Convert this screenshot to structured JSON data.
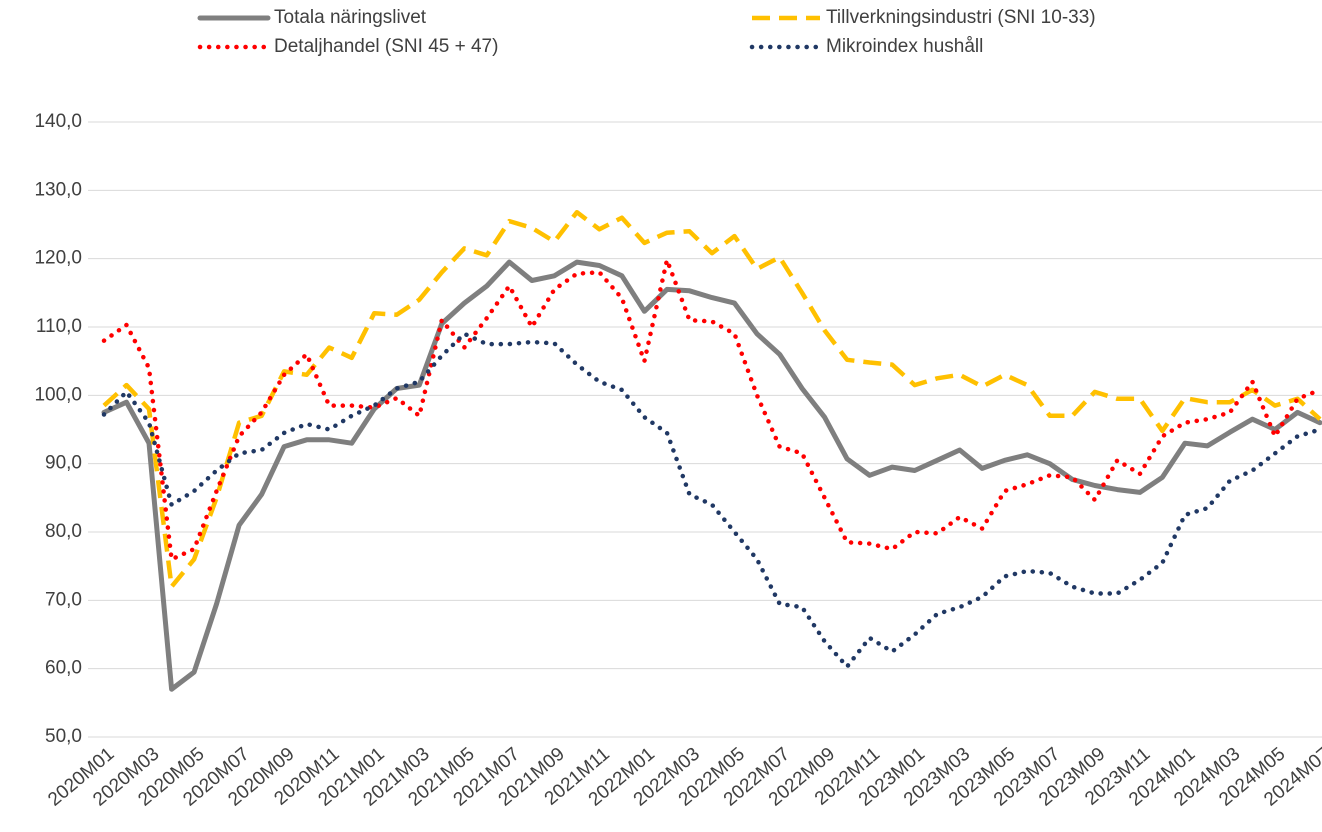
{
  "chart_data": {
    "type": "line",
    "categories": [
      "2020M01",
      null,
      "2020M03",
      null,
      "2020M05",
      null,
      "2020M07",
      null,
      "2020M09",
      null,
      "2020M11",
      null,
      "2021M01",
      null,
      "2021M03",
      null,
      "2021M05",
      null,
      "2021M07",
      null,
      "2021M09",
      null,
      "2021M11",
      null,
      "2022M01",
      null,
      "2022M03",
      null,
      "2022M05",
      null,
      "2022M07",
      null,
      "2022M09",
      null,
      "2022M11",
      null,
      "2023M01",
      null,
      "2023M03",
      null,
      "2023M05",
      null,
      "2023M07",
      null,
      "2023M09",
      null,
      "2023M11",
      null,
      "2024M01",
      null,
      "2024M03",
      null,
      "2024M05",
      null,
      "2024M07"
    ],
    "series": [
      {
        "name": "Totala näringslivet",
        "color": "#7f7f7f",
        "style": "solid",
        "values": [
          97.5,
          99,
          93,
          57,
          59.5,
          69.5,
          81,
          85.5,
          92.5,
          93.5,
          93.5,
          93,
          98,
          101,
          101.5,
          110.5,
          113.5,
          116,
          119.5,
          116.8,
          117.5,
          119.5,
          119,
          117.5,
          112.3,
          115.5,
          115.3,
          114.3,
          113.5,
          109,
          106,
          101,
          96.8,
          90.7,
          88.3,
          89.5,
          89,
          90.5,
          92,
          89.3,
          90.5,
          91.3,
          90,
          87.7,
          86.8,
          86.2,
          85.8,
          88,
          93,
          92.6,
          94.6,
          96.5,
          95,
          97.5,
          96
        ]
      },
      {
        "name": "Tillverkningsindustri (SNI 10-33)",
        "color": "#ffc000",
        "style": "dash",
        "values": [
          98.5,
          101.5,
          98,
          72,
          76,
          85,
          96,
          97,
          103.5,
          103,
          107,
          105.5,
          112,
          111.8,
          114,
          118,
          121.5,
          120.5,
          125.5,
          124.5,
          122.5,
          126.8,
          124.3,
          126,
          122.3,
          123.8,
          124,
          120.8,
          123.3,
          118.5,
          120.2,
          115,
          109.5,
          105.2,
          104.8,
          104.5,
          101.5,
          102.5,
          103,
          101.3,
          103,
          101.5,
          97,
          97,
          100.5,
          99.5,
          99.5,
          94.8,
          99.6,
          99,
          99,
          100.8,
          98.5,
          99.5,
          96.5
        ]
      },
      {
        "name": "Detaljhandel (SNI 45 + 47)",
        "color": "#ff0000",
        "style": "dot",
        "values": [
          108,
          110.3,
          104,
          76,
          77.5,
          86,
          94,
          97.5,
          103,
          106,
          98.5,
          98.5,
          98.2,
          99.6,
          97,
          111,
          107,
          111.3,
          116,
          110,
          115.5,
          117.8,
          118,
          114.2,
          105,
          119.8,
          111,
          110.8,
          109,
          100,
          92.5,
          91.5,
          85,
          78.5,
          78.3,
          77.5,
          80,
          79.8,
          82.2,
          80.5,
          86,
          87,
          88.3,
          88,
          84.7,
          90.5,
          88.5,
          94,
          96,
          96.5,
          97.5,
          102,
          94,
          99.5,
          100.8
        ]
      },
      {
        "name": "Mikroindex hushåll",
        "color": "#203864",
        "style": "dot",
        "values": [
          97.2,
          100.5,
          96,
          84,
          86,
          89,
          91.5,
          92,
          94.5,
          95.8,
          95,
          97,
          98.5,
          101,
          102,
          105.8,
          109,
          107.5,
          107.5,
          107.8,
          107.6,
          104.5,
          102,
          100.8,
          96.8,
          94.5,
          85.5,
          84,
          80,
          76,
          69.5,
          69,
          64,
          60.3,
          64.5,
          62.5,
          65,
          68,
          69,
          70.5,
          73.5,
          74.3,
          74,
          72,
          71,
          71,
          73,
          75.5,
          82.5,
          83.5,
          87.5,
          89,
          91.5,
          94,
          95
        ]
      }
    ],
    "ylim": [
      50,
      140
    ],
    "yticks": [
      {
        "value": 50,
        "label": "50,0"
      },
      {
        "value": 60,
        "label": "60,0"
      },
      {
        "value": 70,
        "label": "70,0"
      },
      {
        "value": 80,
        "label": "80,0"
      },
      {
        "value": 90,
        "label": "90,0"
      },
      {
        "value": 100,
        "label": "100,0"
      },
      {
        "value": 110,
        "label": "110,0"
      },
      {
        "value": 120,
        "label": "120,0"
      },
      {
        "value": 130,
        "label": "130,0"
      },
      {
        "value": 140,
        "label": "140,0"
      }
    ],
    "grid": true,
    "legend": "top"
  }
}
